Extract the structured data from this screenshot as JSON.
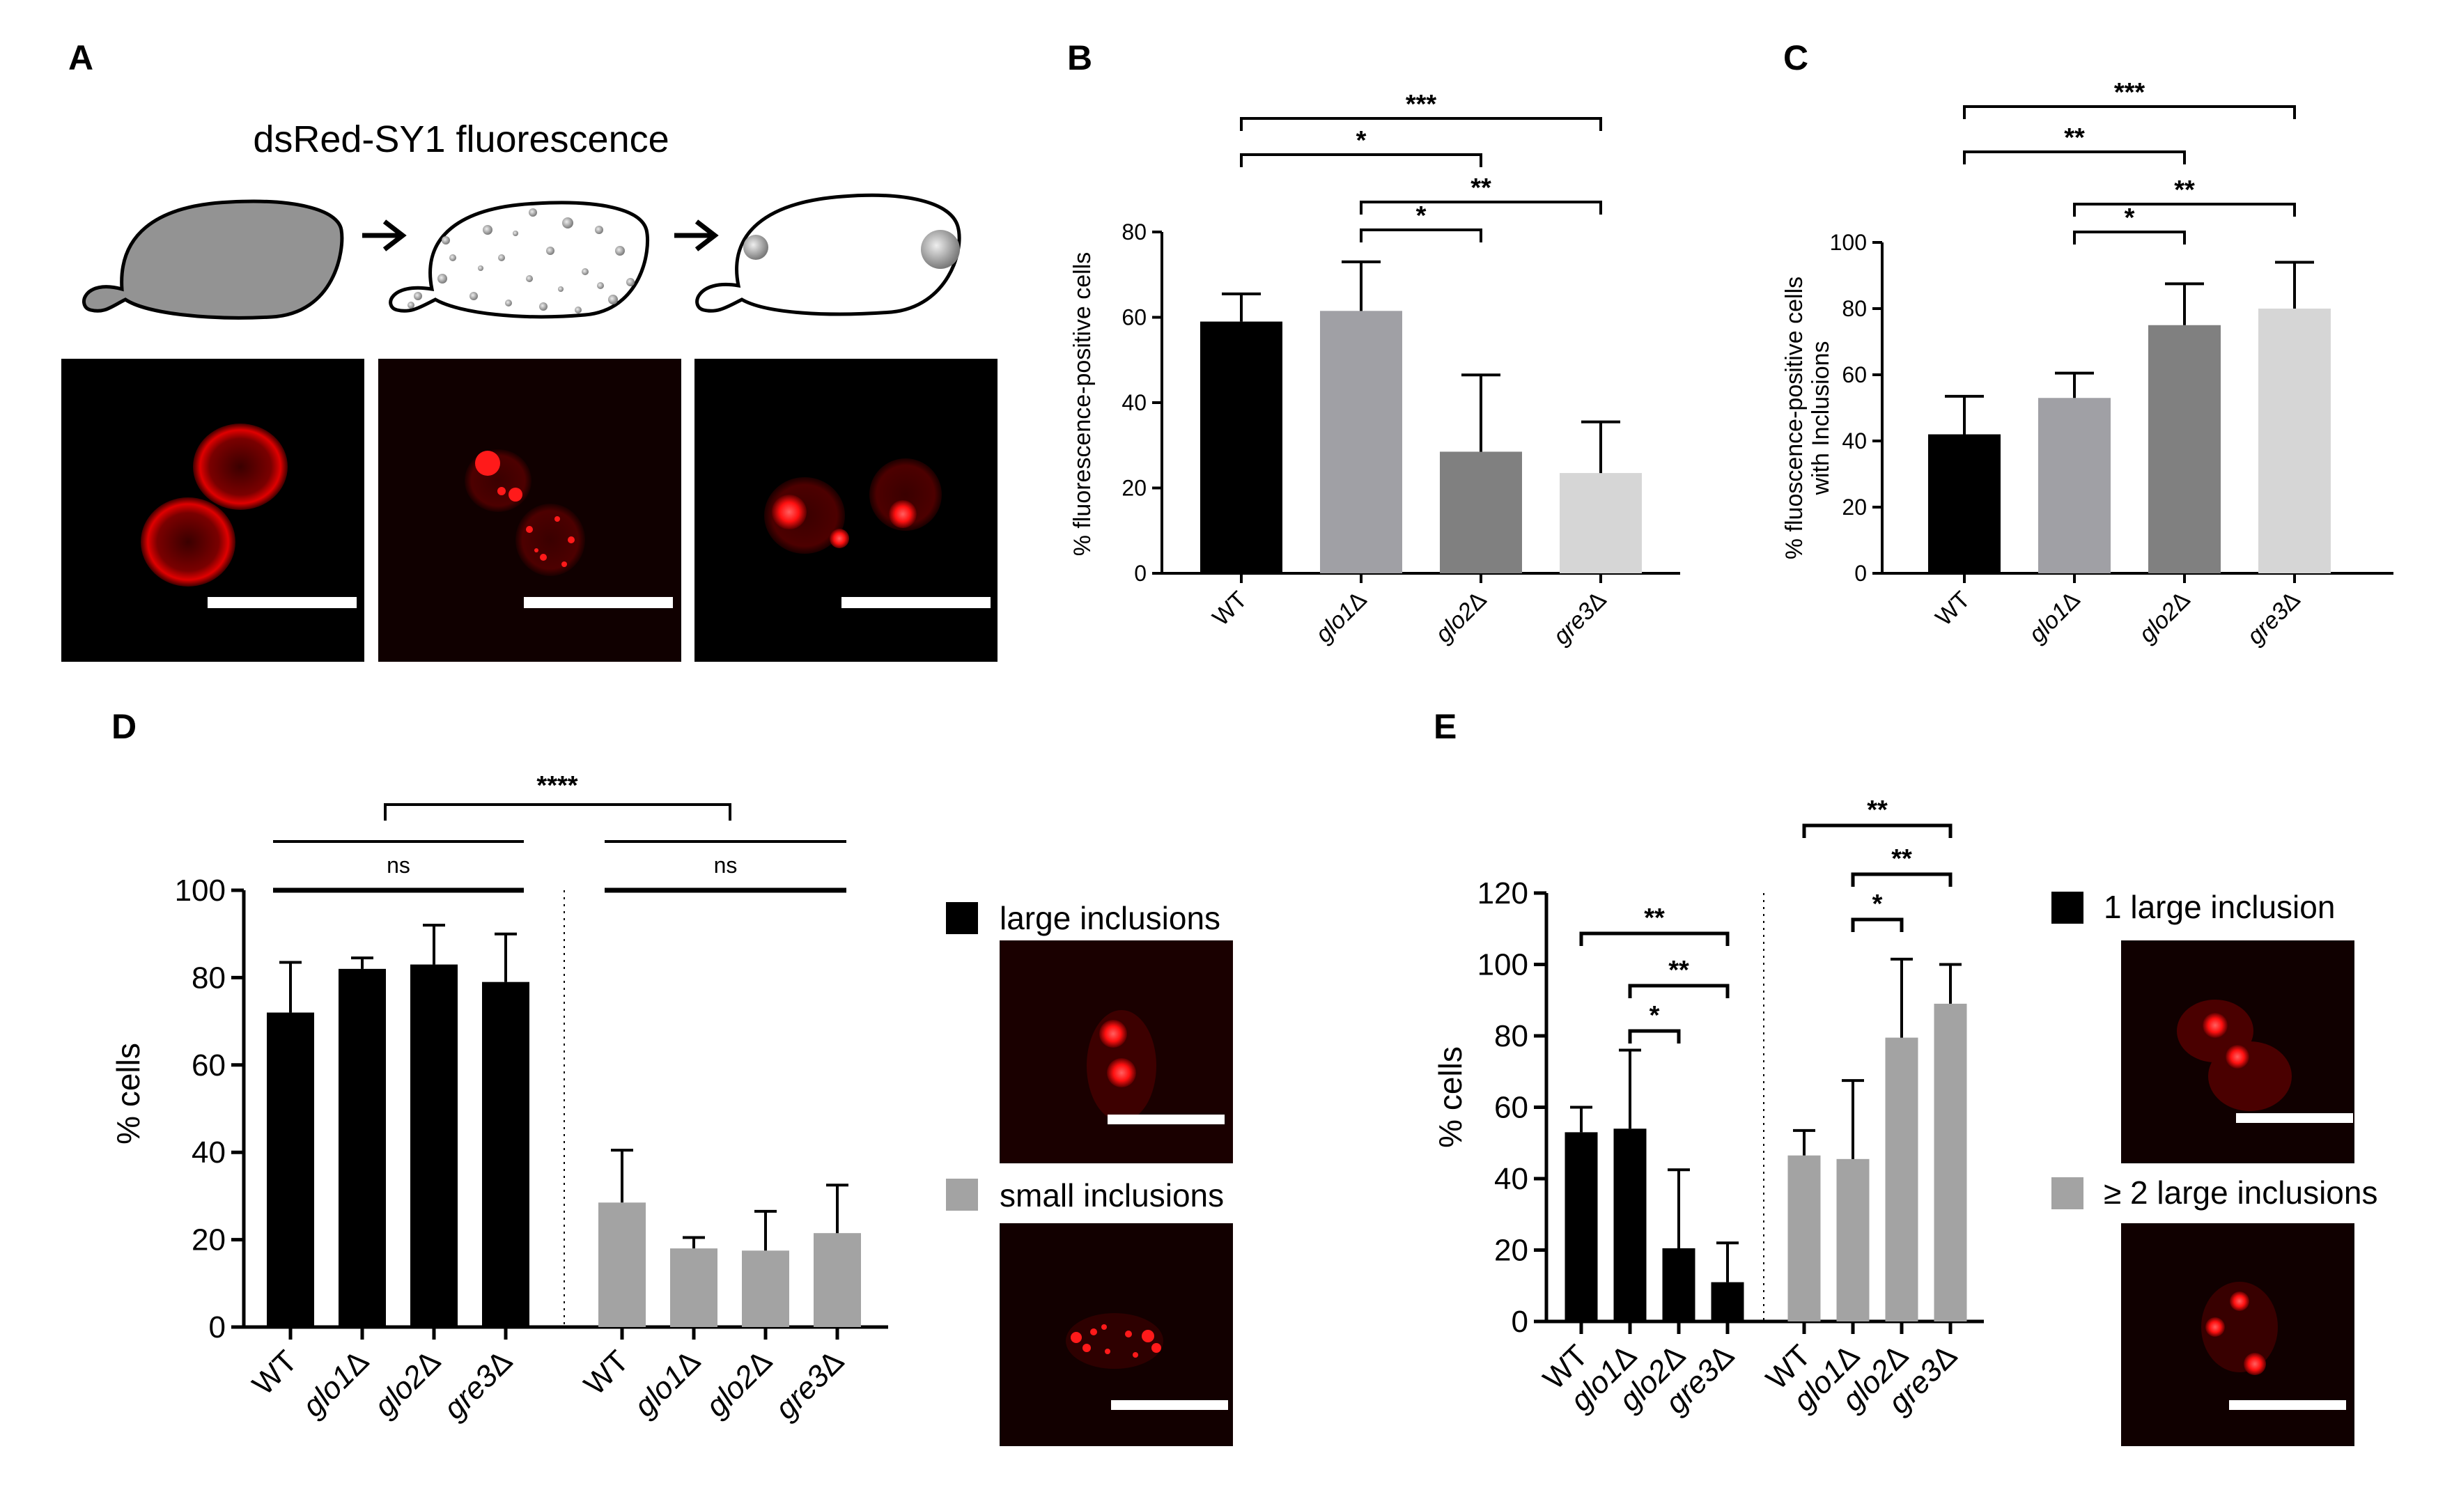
{
  "panels": {
    "A": {
      "letter": "A",
      "title": "dsRed-SY1 fluorescence"
    },
    "B": {
      "letter": "B"
    },
    "C": {
      "letter": "C"
    },
    "D": {
      "letter": "D"
    },
    "E": {
      "letter": "E"
    }
  },
  "legend": {
    "D": {
      "large": "large inclusions",
      "small": "small inclusions"
    },
    "E": {
      "one": "1 large inclusion",
      "two": "≥ 2 large inclusions"
    }
  },
  "colors": {
    "black": "#000000",
    "dark_gray": "#808080",
    "mid_gray": "#a0a0a5",
    "light_gray": "#d6d6d6",
    "series_gray": "#a3a3a3",
    "fluor_red": "#ff1a1a"
  },
  "chart_data": [
    {
      "panel": "B",
      "type": "bar",
      "categories": [
        "WT",
        "glo1Δ",
        "glo2Δ",
        "gre3Δ"
      ],
      "values": [
        59,
        61.5,
        28.5,
        23.5
      ],
      "errors": [
        6.5,
        11.5,
        18,
        12
      ],
      "ylabel": "% fluorescence-positive cells",
      "ylim": [
        0,
        80
      ],
      "yticks": [
        0,
        20,
        40,
        60,
        80
      ],
      "significance": [
        {
          "from": 1,
          "to": 2,
          "label": "*"
        },
        {
          "from": 1,
          "to": 3,
          "label": "**"
        },
        {
          "from": 0,
          "to": 2,
          "label": "*"
        },
        {
          "from": 0,
          "to": 3,
          "label": "***"
        }
      ]
    },
    {
      "panel": "C",
      "type": "bar",
      "categories": [
        "WT",
        "glo1Δ",
        "glo2Δ",
        "gre3Δ"
      ],
      "values": [
        42,
        53,
        75,
        80
      ],
      "errors": [
        11.5,
        7.5,
        12.5,
        14
      ],
      "ylabel": "% fluoscence-positive cells\nwith Inclusions",
      "ylim": [
        0,
        100
      ],
      "yticks": [
        0,
        20,
        40,
        60,
        80,
        100
      ],
      "significance": [
        {
          "from": 1,
          "to": 2,
          "label": "*"
        },
        {
          "from": 1,
          "to": 3,
          "label": "**"
        },
        {
          "from": 0,
          "to": 2,
          "label": "**"
        },
        {
          "from": 0,
          "to": 3,
          "label": "***"
        }
      ]
    },
    {
      "panel": "D",
      "type": "bar",
      "categories": [
        "WT",
        "glo1Δ",
        "glo2Δ",
        "gre3Δ"
      ],
      "series": [
        {
          "name": "large inclusions",
          "values": [
            72,
            82,
            83,
            79
          ],
          "errors": [
            11.5,
            2.5,
            9,
            11
          ]
        },
        {
          "name": "small inclusions",
          "values": [
            28.5,
            18,
            17.5,
            21.5
          ],
          "errors": [
            12,
            2.5,
            9,
            11
          ]
        }
      ],
      "ylabel": "% cells",
      "ylim": [
        0,
        100
      ],
      "yticks": [
        0,
        20,
        40,
        60,
        80,
        100
      ],
      "significance": [
        {
          "group": 0,
          "label": "ns"
        },
        {
          "group": 1,
          "label": "ns"
        },
        {
          "between_groups": true,
          "label": "****"
        }
      ]
    },
    {
      "panel": "E",
      "type": "bar",
      "categories": [
        "WT",
        "glo1Δ",
        "glo2Δ",
        "gre3Δ"
      ],
      "series": [
        {
          "name": "1 large inclusion",
          "values": [
            53,
            54,
            20.5,
            11
          ],
          "errors": [
            7,
            22,
            22,
            11
          ]
        },
        {
          "name": "≥ 2 large inclusions",
          "values": [
            46.5,
            45.5,
            79.5,
            89
          ],
          "errors": [
            7,
            22,
            22,
            11
          ]
        }
      ],
      "ylabel": "% cells",
      "ylim": [
        0,
        120
      ],
      "yticks": [
        0,
        20,
        40,
        60,
        80,
        100,
        120
      ],
      "significance": [
        {
          "group": 0,
          "from": 1,
          "to": 2,
          "label": "*"
        },
        {
          "group": 0,
          "from": 1,
          "to": 3,
          "label": "**"
        },
        {
          "group": 0,
          "from": 0,
          "to": 3,
          "label": "**"
        },
        {
          "group": 1,
          "from": 1,
          "to": 2,
          "label": "*"
        },
        {
          "group": 1,
          "from": 1,
          "to": 3,
          "label": "**"
        },
        {
          "group": 1,
          "from": 0,
          "to": 3,
          "label": "**"
        }
      ]
    }
  ]
}
